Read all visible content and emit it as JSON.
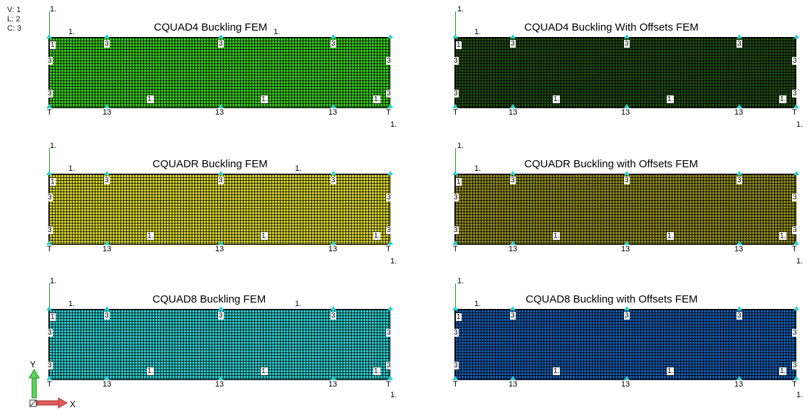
{
  "viewport_info": {
    "v": "V: 1",
    "l": "L: 2",
    "c": "C: 3"
  },
  "triad": {
    "y_label": "Y",
    "x_label": "X",
    "y_color": "#5bd35b",
    "x_color": "#e05a5a"
  },
  "models": [
    {
      "title": "CQUAD4 Buckling FEM",
      "mesh_color": "#39c21b"
    },
    {
      "title": "CQUAD4 Buckling With Offsets FEM",
      "mesh_color": "#1f4a12"
    },
    {
      "title": "CQUADR Buckling FEM",
      "mesh_color": "#d3d12a"
    },
    {
      "title": "CQUADR Buckling with Offsets FEM",
      "mesh_color": "#8e8a1e"
    },
    {
      "title": "CQUAD8 Buckling FEM",
      "mesh_color": "#2cc7c9"
    },
    {
      "title": "CQUAD8 Buckling with Offsets FEM",
      "mesh_color": "#1458a8"
    }
  ],
  "labels": {
    "one": "1.",
    "one_short": "1",
    "three": "3",
    "thirteen": "13",
    "t": "T"
  }
}
